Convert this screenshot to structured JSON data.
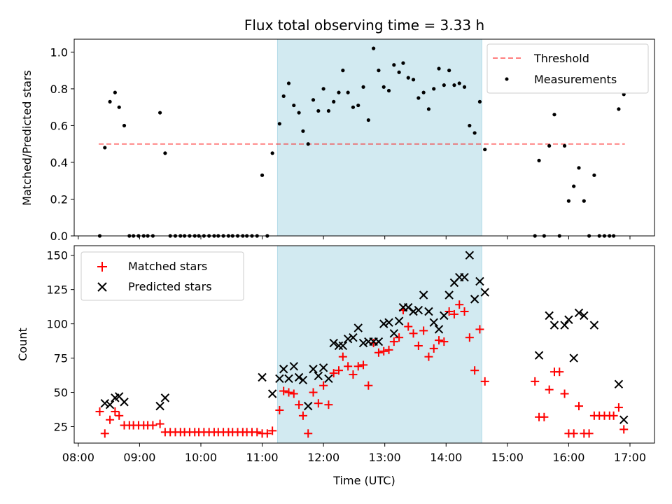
{
  "title": "Flux total observing time = 3.33 h",
  "colors": {
    "shade": "#add8e6",
    "threshold": "#ff0000",
    "measurement": "#000000",
    "matched": "#ff0000",
    "predicted": "#000000"
  },
  "chart_data": [
    {
      "type": "scatter",
      "panel": "top",
      "ylabel": "Matched/Predicted stars",
      "ylim": [
        0,
        1.07
      ],
      "yticks": [
        "0.0",
        "0.2",
        "0.4",
        "0.6",
        "0.8",
        "1.0"
      ],
      "xlim": [
        "07:56",
        "17:24"
      ],
      "shaded_span": [
        "11:15",
        "14:35"
      ],
      "threshold": {
        "name": "Threshold",
        "value": 0.5,
        "x_range": [
          "08:20",
          "16:55"
        ]
      },
      "legend": {
        "placement": "upper-right",
        "entries": [
          "Threshold",
          "Measurements"
        ]
      },
      "series": [
        {
          "name": "Measurements",
          "points": [
            [
              "08:21",
              0.0
            ],
            [
              "08:26",
              0.48
            ],
            [
              "08:31",
              0.73
            ],
            [
              "08:36",
              0.78
            ],
            [
              "08:40",
              0.7
            ],
            [
              "08:45",
              0.6
            ],
            [
              "08:50",
              0.0
            ],
            [
              "08:54",
              0.0
            ],
            [
              "08:59",
              0.0
            ],
            [
              "09:04",
              0.0
            ],
            [
              "09:08",
              0.0
            ],
            [
              "09:13",
              0.0
            ],
            [
              "09:20",
              0.67
            ],
            [
              "09:25",
              0.45
            ],
            [
              "09:30",
              0.0
            ],
            [
              "09:35",
              0.0
            ],
            [
              "09:40",
              0.0
            ],
            [
              "09:44",
              0.0
            ],
            [
              "09:49",
              0.0
            ],
            [
              "09:54",
              0.0
            ],
            [
              "09:58",
              0.0
            ],
            [
              "10:03",
              0.0
            ],
            [
              "10:08",
              0.0
            ],
            [
              "10:13",
              0.0
            ],
            [
              "10:17",
              0.0
            ],
            [
              "10:22",
              0.0
            ],
            [
              "10:27",
              0.0
            ],
            [
              "10:31",
              0.0
            ],
            [
              "10:36",
              0.0
            ],
            [
              "10:41",
              0.0
            ],
            [
              "10:45",
              0.0
            ],
            [
              "10:50",
              0.0
            ],
            [
              "10:55",
              0.0
            ],
            [
              "11:00",
              0.33
            ],
            [
              "11:05",
              0.0
            ],
            [
              "11:10",
              0.45
            ],
            [
              "11:17",
              0.61
            ],
            [
              "11:21",
              0.76
            ],
            [
              "11:26",
              0.83
            ],
            [
              "11:31",
              0.71
            ],
            [
              "11:36",
              0.67
            ],
            [
              "11:40",
              0.57
            ],
            [
              "11:45",
              0.5
            ],
            [
              "11:50",
              0.74
            ],
            [
              "11:55",
              0.68
            ],
            [
              "12:00",
              0.8
            ],
            [
              "12:05",
              0.68
            ],
            [
              "12:10",
              0.73
            ],
            [
              "12:15",
              0.78
            ],
            [
              "12:19",
              0.9
            ],
            [
              "12:24",
              0.78
            ],
            [
              "12:29",
              0.7
            ],
            [
              "12:34",
              0.71
            ],
            [
              "12:39",
              0.81
            ],
            [
              "12:44",
              0.63
            ],
            [
              "12:49",
              1.02
            ],
            [
              "12:54",
              0.9
            ],
            [
              "12:59",
              0.81
            ],
            [
              "13:04",
              0.79
            ],
            [
              "13:09",
              0.93
            ],
            [
              "13:14",
              0.89
            ],
            [
              "13:18",
              0.94
            ],
            [
              "13:23",
              0.86
            ],
            [
              "13:28",
              0.85
            ],
            [
              "13:33",
              0.75
            ],
            [
              "13:38",
              0.78
            ],
            [
              "13:43",
              0.69
            ],
            [
              "13:48",
              0.8
            ],
            [
              "13:53",
              0.91
            ],
            [
              "13:58",
              0.82
            ],
            [
              "14:03",
              0.9
            ],
            [
              "14:08",
              0.82
            ],
            [
              "14:13",
              0.83
            ],
            [
              "14:18",
              0.81
            ],
            [
              "14:23",
              0.6
            ],
            [
              "14:28",
              0.56
            ],
            [
              "14:33",
              0.73
            ],
            [
              "14:38",
              0.47
            ],
            [
              "15:27",
              0.0
            ],
            [
              "15:31",
              0.41
            ],
            [
              "15:36",
              0.0
            ],
            [
              "15:41",
              0.49
            ],
            [
              "15:46",
              0.66
            ],
            [
              "15:51",
              0.0
            ],
            [
              "15:56",
              0.49
            ],
            [
              "16:00",
              0.19
            ],
            [
              "16:05",
              0.27
            ],
            [
              "16:10",
              0.37
            ],
            [
              "16:15",
              0.19
            ],
            [
              "16:20",
              0.0
            ],
            [
              "16:25",
              0.33
            ],
            [
              "16:30",
              0.0
            ],
            [
              "16:35",
              0.0
            ],
            [
              "16:40",
              0.0
            ],
            [
              "16:44",
              0.0
            ],
            [
              "16:49",
              0.69
            ],
            [
              "16:54",
              0.77
            ]
          ]
        }
      ]
    },
    {
      "type": "scatter",
      "panel": "bottom",
      "xlabel": "Time (UTC)",
      "ylabel": "Count",
      "ylim": [
        13,
        157
      ],
      "yticks": [
        "25",
        "50",
        "75",
        "100",
        "125",
        "150"
      ],
      "xlim": [
        "07:56",
        "17:24"
      ],
      "xticks": [
        "08:00",
        "09:00",
        "10:00",
        "11:00",
        "12:00",
        "13:00",
        "14:00",
        "15:00",
        "16:00",
        "17:00"
      ],
      "shaded_span": [
        "11:15",
        "14:35"
      ],
      "legend": {
        "placement": "upper-left",
        "entries": [
          "Matched stars",
          "Predicted stars"
        ]
      },
      "series": [
        {
          "name": "Matched stars",
          "marker": "plus",
          "points": [
            [
              "08:21",
              36
            ],
            [
              "08:26",
              20
            ],
            [
              "08:31",
              30
            ],
            [
              "08:36",
              36
            ],
            [
              "08:40",
              33
            ],
            [
              "08:45",
              26
            ],
            [
              "08:50",
              26
            ],
            [
              "08:54",
              26
            ],
            [
              "08:59",
              26
            ],
            [
              "09:04",
              26
            ],
            [
              "09:08",
              26
            ],
            [
              "09:13",
              26
            ],
            [
              "09:20",
              27
            ],
            [
              "09:25",
              21
            ],
            [
              "09:30",
              21
            ],
            [
              "09:35",
              21
            ],
            [
              "09:40",
              21
            ],
            [
              "09:44",
              21
            ],
            [
              "09:49",
              21
            ],
            [
              "09:54",
              21
            ],
            [
              "09:58",
              21
            ],
            [
              "10:03",
              21
            ],
            [
              "10:08",
              21
            ],
            [
              "10:13",
              21
            ],
            [
              "10:17",
              21
            ],
            [
              "10:22",
              21
            ],
            [
              "10:27",
              21
            ],
            [
              "10:31",
              21
            ],
            [
              "10:36",
              21
            ],
            [
              "10:41",
              21
            ],
            [
              "10:45",
              21
            ],
            [
              "10:50",
              21
            ],
            [
              "10:55",
              21
            ],
            [
              "11:00",
              20
            ],
            [
              "11:05",
              20
            ],
            [
              "11:10",
              22
            ],
            [
              "11:17",
              37
            ],
            [
              "11:21",
              51
            ],
            [
              "11:26",
              50
            ],
            [
              "11:31",
              49
            ],
            [
              "11:36",
              41
            ],
            [
              "11:40",
              33
            ],
            [
              "11:45",
              20
            ],
            [
              "11:50",
              50
            ],
            [
              "11:55",
              42
            ],
            [
              "12:00",
              55
            ],
            [
              "12:05",
              41
            ],
            [
              "12:10",
              64
            ],
            [
              "12:15",
              66
            ],
            [
              "12:19",
              76
            ],
            [
              "12:24",
              69
            ],
            [
              "12:29",
              63
            ],
            [
              "12:34",
              69
            ],
            [
              "12:39",
              70
            ],
            [
              "12:44",
              55
            ],
            [
              "12:49",
              86
            ],
            [
              "12:54",
              79
            ],
            [
              "12:59",
              80
            ],
            [
              "13:04",
              81
            ],
            [
              "13:09",
              87
            ],
            [
              "13:14",
              90
            ],
            [
              "13:18",
              110
            ],
            [
              "13:23",
              98
            ],
            [
              "13:28",
              93
            ],
            [
              "13:33",
              84
            ],
            [
              "13:38",
              95
            ],
            [
              "13:43",
              76
            ],
            [
              "13:48",
              82
            ],
            [
              "13:53",
              88
            ],
            [
              "13:58",
              87
            ],
            [
              "14:03",
              109
            ],
            [
              "14:08",
              107
            ],
            [
              "14:13",
              114
            ],
            [
              "14:18",
              109
            ],
            [
              "14:23",
              90
            ],
            [
              "14:28",
              66
            ],
            [
              "14:33",
              96
            ],
            [
              "14:38",
              58
            ],
            [
              "15:27",
              58
            ],
            [
              "15:31",
              32
            ],
            [
              "15:36",
              32
            ],
            [
              "15:41",
              52
            ],
            [
              "15:46",
              65
            ],
            [
              "15:51",
              65
            ],
            [
              "15:56",
              49
            ],
            [
              "16:00",
              20
            ],
            [
              "16:05",
              20
            ],
            [
              "16:10",
              40
            ],
            [
              "16:15",
              20
            ],
            [
              "16:20",
              20
            ],
            [
              "16:25",
              33
            ],
            [
              "16:30",
              33
            ],
            [
              "16:35",
              33
            ],
            [
              "16:40",
              33
            ],
            [
              "16:44",
              33
            ],
            [
              "16:49",
              39
            ],
            [
              "16:54",
              23
            ]
          ]
        },
        {
          "name": "Predicted stars",
          "marker": "x",
          "points": [
            [
              "08:26",
              42
            ],
            [
              "08:31",
              41
            ],
            [
              "08:36",
              46
            ],
            [
              "08:40",
              47
            ],
            [
              "08:45",
              43
            ],
            [
              "09:20",
              40
            ],
            [
              "09:25",
              46
            ],
            [
              "11:00",
              61
            ],
            [
              "11:10",
              49
            ],
            [
              "11:17",
              60
            ],
            [
              "11:21",
              67
            ],
            [
              "11:26",
              60
            ],
            [
              "11:31",
              69
            ],
            [
              "11:36",
              61
            ],
            [
              "11:40",
              59
            ],
            [
              "11:45",
              40
            ],
            [
              "11:50",
              67
            ],
            [
              "11:55",
              62
            ],
            [
              "12:00",
              68
            ],
            [
              "12:05",
              60
            ],
            [
              "12:10",
              86
            ],
            [
              "12:15",
              84
            ],
            [
              "12:19",
              84
            ],
            [
              "12:24",
              89
            ],
            [
              "12:29",
              90
            ],
            [
              "12:34",
              97
            ],
            [
              "12:39",
              86
            ],
            [
              "12:44",
              87
            ],
            [
              "12:49",
              87
            ],
            [
              "12:54",
              87
            ],
            [
              "12:59",
              100
            ],
            [
              "13:04",
              101
            ],
            [
              "13:09",
              93
            ],
            [
              "13:14",
              102
            ],
            [
              "13:18",
              112
            ],
            [
              "13:23",
              112
            ],
            [
              "13:28",
              109
            ],
            [
              "13:33",
              110
            ],
            [
              "13:38",
              121
            ],
            [
              "13:43",
              109
            ],
            [
              "13:48",
              101
            ],
            [
              "13:53",
              96
            ],
            [
              "13:58",
              106
            ],
            [
              "14:03",
              121
            ],
            [
              "14:08",
              130
            ],
            [
              "14:13",
              134
            ],
            [
              "14:18",
              134
            ],
            [
              "14:23",
              150
            ],
            [
              "14:28",
              118
            ],
            [
              "14:33",
              131
            ],
            [
              "14:38",
              123
            ],
            [
              "15:31",
              77
            ],
            [
              "15:41",
              106
            ],
            [
              "15:46",
              99
            ],
            [
              "15:56",
              99
            ],
            [
              "16:00",
              103
            ],
            [
              "16:05",
              75
            ],
            [
              "16:10",
              108
            ],
            [
              "16:15",
              106
            ],
            [
              "16:25",
              99
            ],
            [
              "16:49",
              56
            ],
            [
              "16:54",
              30
            ]
          ]
        }
      ]
    }
  ]
}
